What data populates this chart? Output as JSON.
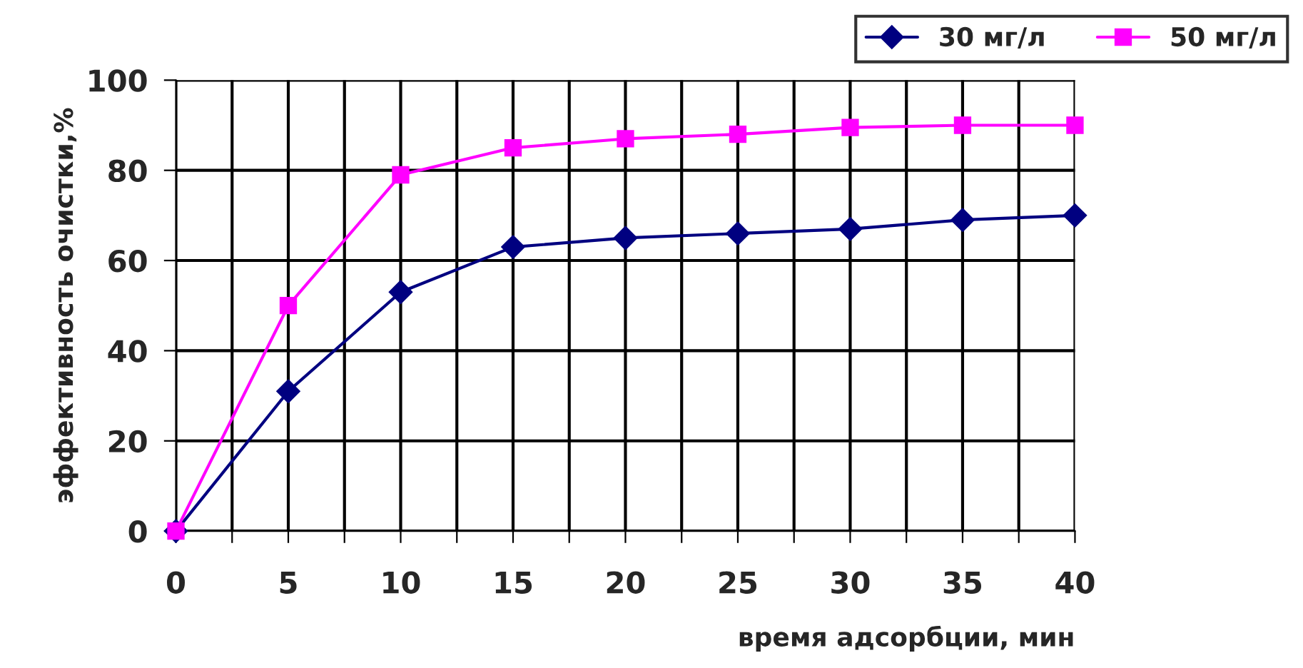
{
  "chart_data": {
    "type": "line",
    "xlabel": "время адсорбции, мин",
    "ylabel": "эффективность очистки,%",
    "x": [
      0,
      5,
      10,
      15,
      20,
      25,
      30,
      35,
      40
    ],
    "series": [
      {
        "name": "30 мг/л",
        "color": "#000080",
        "marker": "diamond",
        "values": [
          0,
          31,
          53,
          63,
          65,
          66,
          67,
          69,
          70
        ]
      },
      {
        "name": "50 мг/л",
        "color": "#ff00ff",
        "marker": "square",
        "values": [
          0,
          50,
          79,
          85,
          87,
          88,
          89.5,
          90,
          90
        ]
      }
    ],
    "xlim": [
      0,
      40
    ],
    "ylim": [
      0,
      100
    ],
    "xticks": [
      0,
      {
        "value": 2.5,
        "label": null
      },
      5,
      {
        "value": 7.5,
        "label": null
      },
      10,
      {
        "value": 12.5,
        "label": null
      },
      15,
      {
        "value": 17.5,
        "label": null
      },
      20,
      {
        "value": 22.5,
        "label": null
      },
      25,
      {
        "value": 27.5,
        "label": null
      },
      30,
      {
        "value": 32.5,
        "label": null
      },
      35,
      {
        "value": 37.5,
        "label": null
      },
      40
    ],
    "yticks": [
      0,
      20,
      40,
      60,
      80,
      100
    ],
    "grid": true,
    "legend": "top right",
    "line_style": "solid"
  }
}
